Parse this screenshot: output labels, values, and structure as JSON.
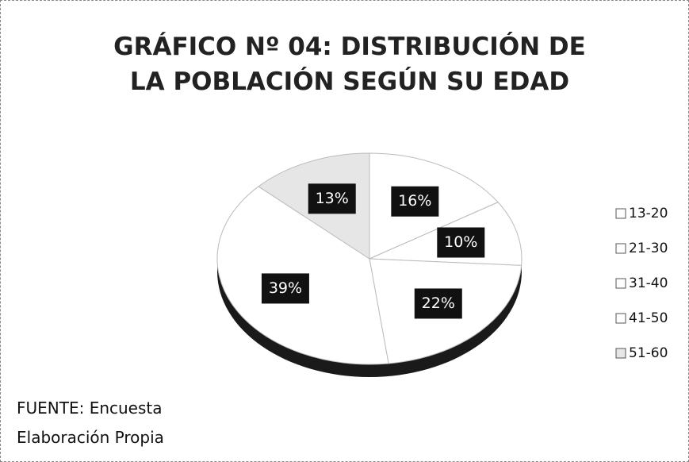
{
  "chart_data": {
    "type": "pie",
    "title": "GRÁFICO Nº 04: DISTRIBUCIÓN DE LA POBLACIÓN SEGÚN SU EDAD",
    "categories": [
      "13-20",
      "21-30",
      "31-40",
      "41-50",
      "51-60"
    ],
    "values": [
      16,
      10,
      22,
      39,
      13
    ],
    "value_labels": [
      "16%",
      "10%",
      "22%",
      "39%",
      "13%"
    ],
    "colors": [
      "#ffffff",
      "#ffffff",
      "#ffffff",
      "#ffffff",
      "#e6e6e6"
    ],
    "legend": "right",
    "source": [
      "FUENTE: Encuesta",
      "Elaboración Propia"
    ]
  }
}
